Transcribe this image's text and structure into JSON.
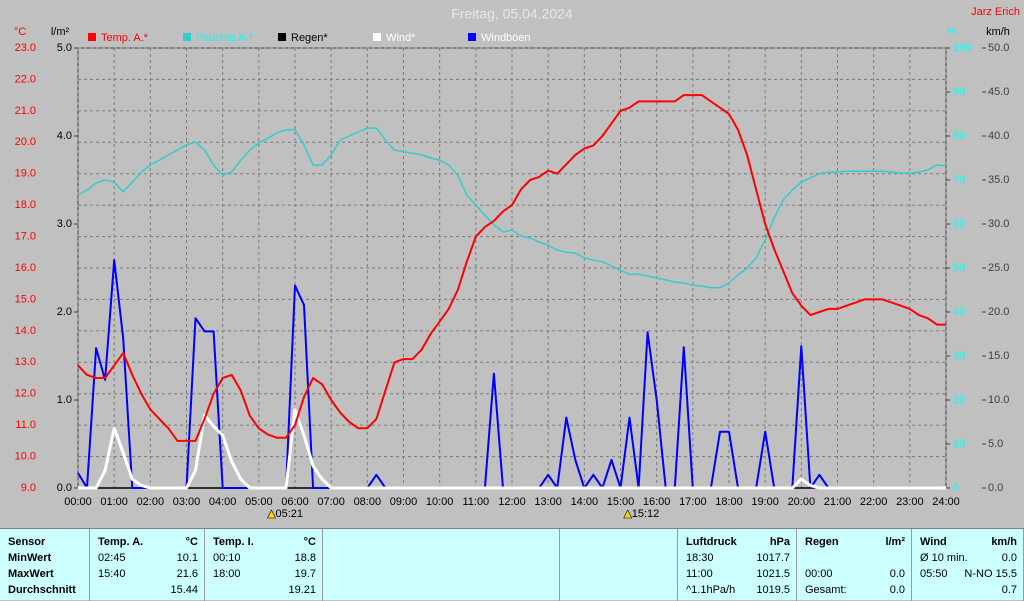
{
  "chart_data": {
    "type": "line",
    "title": "Freitag, 05.04.2024",
    "author": "Jarz Erich",
    "xlim": [
      0,
      24
    ],
    "xticks": [
      {
        "value": 0,
        "label": "00:00"
      },
      {
        "value": 1,
        "label": "01:00"
      },
      {
        "value": 2,
        "label": "02:00"
      },
      {
        "value": 3,
        "label": "03:00"
      },
      {
        "value": 4,
        "label": "04:00"
      },
      {
        "value": 5,
        "label": "05:00"
      },
      {
        "value": 6,
        "label": "06:00"
      },
      {
        "value": 7,
        "label": "07:00"
      },
      {
        "value": 8,
        "label": "08:00"
      },
      {
        "value": 9,
        "label": "09:00"
      },
      {
        "value": 10,
        "label": "10:00"
      },
      {
        "value": 11,
        "label": "11:00"
      },
      {
        "value": 12,
        "label": "12:00"
      },
      {
        "value": 13,
        "label": "13:00"
      },
      {
        "value": 14,
        "label": "14:00"
      },
      {
        "value": 15,
        "label": "15:00"
      },
      {
        "value": 16,
        "label": "16:00"
      },
      {
        "value": 17,
        "label": "17:00"
      },
      {
        "value": 18,
        "label": "18:00"
      },
      {
        "value": 19,
        "label": "19:00"
      },
      {
        "value": 20,
        "label": "20:00"
      },
      {
        "value": 21,
        "label": "21:00"
      },
      {
        "value": 22,
        "label": "22:00"
      },
      {
        "value": 23,
        "label": "23:00"
      },
      {
        "value": 24,
        "label": "24:00"
      }
    ],
    "y_label": "°C",
    "ylim": [
      9,
      23
    ],
    "yticks": [
      {
        "value": 9,
        "label": "9.0"
      },
      {
        "value": 10,
        "label": "10.0"
      },
      {
        "value": 11,
        "label": "11.0"
      },
      {
        "value": 12,
        "label": "12.0"
      },
      {
        "value": 13,
        "label": "13.0"
      },
      {
        "value": 14,
        "label": "14.0"
      },
      {
        "value": 15,
        "label": "15.0"
      },
      {
        "value": 16,
        "label": "16.0"
      },
      {
        "value": 17,
        "label": "17.0"
      },
      {
        "value": 18,
        "label": "18.0"
      },
      {
        "value": 19,
        "label": "19.0"
      },
      {
        "value": 20,
        "label": "20.0"
      },
      {
        "value": 21,
        "label": "21.0"
      },
      {
        "value": 22,
        "label": "22.0"
      },
      {
        "value": 23,
        "label": "23.0"
      }
    ],
    "rain_label": "l/m²",
    "rain_lim": [
      0,
      5
    ],
    "rain_ticks": [
      {
        "value": 0,
        "label": "0.0"
      },
      {
        "value": 1,
        "label": "1.0"
      },
      {
        "value": 2,
        "label": "2.0"
      },
      {
        "value": 3,
        "label": "3.0"
      },
      {
        "value": 4,
        "label": "4.0"
      },
      {
        "value": 5,
        "label": "5.0"
      }
    ],
    "y2_label": "%",
    "y2lim": [
      0,
      100
    ],
    "y2ticks": [
      0,
      10,
      20,
      30,
      40,
      50,
      60,
      70,
      80,
      90,
      100
    ],
    "wind_label": "km/h",
    "wind_lim": [
      0,
      50
    ],
    "wind_ticks": [
      {
        "value": 0,
        "label": "0.0"
      },
      {
        "value": 5,
        "label": "5.0"
      },
      {
        "value": 10,
        "label": "10.0"
      },
      {
        "value": 15,
        "label": "15.0"
      },
      {
        "value": 20,
        "label": "20.0"
      },
      {
        "value": 25,
        "label": "25.0"
      },
      {
        "value": 30,
        "label": "30.0"
      },
      {
        "value": 35,
        "label": "35.0"
      },
      {
        "value": 40,
        "label": "40.0"
      },
      {
        "value": 45,
        "label": "45.0"
      },
      {
        "value": 50,
        "label": "50.0"
      }
    ],
    "grid": true,
    "annotations": [
      {
        "x": 5.35,
        "label": "05:21"
      },
      {
        "x": 15.2,
        "label": "15:12"
      }
    ],
    "x": [
      0,
      0.25,
      0.5,
      0.75,
      1,
      1.25,
      1.5,
      1.75,
      2,
      2.25,
      2.5,
      2.75,
      3,
      3.25,
      3.5,
      3.75,
      4,
      4.25,
      4.5,
      4.75,
      5,
      5.25,
      5.5,
      5.75,
      6,
      6.25,
      6.5,
      6.75,
      7,
      7.25,
      7.5,
      7.75,
      8,
      8.25,
      8.5,
      8.75,
      9,
      9.25,
      9.5,
      9.75,
      10,
      10.25,
      10.5,
      10.75,
      11,
      11.25,
      11.5,
      11.75,
      12,
      12.25,
      12.5,
      12.75,
      13,
      13.25,
      13.5,
      13.75,
      14,
      14.25,
      14.5,
      14.75,
      15,
      15.25,
      15.5,
      15.75,
      16,
      16.25,
      16.5,
      16.75,
      17,
      17.25,
      17.5,
      17.75,
      18,
      18.25,
      18.5,
      18.75,
      19,
      19.25,
      19.5,
      19.75,
      20,
      20.25,
      20.5,
      20.75,
      21,
      21.25,
      21.5,
      21.75,
      22,
      22.25,
      22.5,
      22.75,
      23,
      23.25,
      23.5,
      23.75,
      24
    ],
    "series": [
      {
        "name": "Regen*",
        "color": "#000000",
        "label_color": "#000000",
        "width": 1.5,
        "axis": "rain",
        "values": [
          0,
          0,
          0,
          0,
          0,
          0,
          0,
          0,
          0,
          0,
          0,
          0,
          0,
          0,
          0,
          0,
          0,
          0,
          0,
          0,
          0,
          0,
          0,
          0,
          0,
          0,
          0,
          0,
          0,
          0,
          0,
          0,
          0,
          0,
          0,
          0,
          0,
          0,
          0,
          0,
          0,
          0,
          0,
          0,
          0,
          0,
          0,
          0,
          0,
          0,
          0,
          0,
          0,
          0,
          0,
          0,
          0,
          0,
          0,
          0,
          0,
          0,
          0,
          0,
          0,
          0,
          0,
          0,
          0,
          0,
          0,
          0,
          0,
          0,
          0,
          0,
          0,
          0,
          0,
          0,
          0,
          0,
          0,
          0,
          0,
          0,
          0,
          0,
          0,
          0,
          0,
          0,
          0,
          0,
          0,
          0,
          0
        ]
      },
      {
        "name": "Windböen",
        "color": "#0000ff",
        "label_color": "#ffffff",
        "width": 2,
        "axis": "wind",
        "values": [
          1.7,
          0,
          15.9,
          12.3,
          25.9,
          17.0,
          0,
          0,
          0,
          0,
          0,
          0,
          0,
          19.3,
          17.8,
          17.8,
          0,
          0,
          0,
          0,
          0,
          0,
          0,
          0,
          23.0,
          20.8,
          0,
          0,
          0,
          0,
          0,
          0,
          0,
          1.5,
          0,
          0,
          0,
          0,
          0,
          0,
          0,
          0,
          0,
          0,
          0,
          0,
          13.0,
          0,
          0,
          0,
          0,
          0,
          1.5,
          0,
          8.0,
          3.2,
          0,
          1.5,
          0,
          3.2,
          0,
          8.0,
          0,
          17.7,
          10.0,
          0,
          0,
          16.0,
          0,
          0,
          0,
          6.4,
          6.4,
          0,
          0,
          0,
          6.4,
          0,
          0,
          0,
          16.1,
          0,
          1.5,
          0,
          0,
          0,
          0,
          0,
          0,
          0,
          0,
          0,
          0,
          0,
          0,
          0,
          0
        ]
      },
      {
        "name": "Wind*",
        "color": "#ffffff",
        "label_color": "#ffffff",
        "width": 3,
        "axis": "wind",
        "values": [
          0,
          0,
          0,
          2.0,
          6.8,
          4.0,
          1.0,
          0.3,
          0,
          0,
          0,
          0,
          0,
          2.0,
          8.3,
          7.0,
          6.0,
          3.0,
          1.0,
          0,
          0,
          0,
          0,
          0,
          8.9,
          6.0,
          2.5,
          1.0,
          0,
          0,
          0,
          0,
          0,
          0,
          0,
          0,
          0,
          0,
          0,
          0,
          0,
          0,
          0,
          0,
          0,
          0,
          0,
          0,
          0,
          0,
          0,
          0,
          0,
          0,
          0,
          0,
          0,
          0,
          0,
          0,
          0,
          0,
          0,
          0,
          0,
          0,
          0,
          0,
          0,
          0,
          0,
          0,
          0,
          0,
          0,
          0,
          0,
          0,
          0,
          0,
          1.0,
          0.3,
          0,
          0,
          0,
          0,
          0,
          0,
          0,
          0,
          0,
          0,
          0,
          0,
          0,
          0,
          0
        ]
      },
      {
        "name": "Feuchte A.*",
        "color": "#33cccc",
        "label_color": "#00ffff",
        "width": 1.5,
        "axis": "y2",
        "values": [
          66.6,
          67.7,
          69.3,
          70.0,
          69.5,
          67.3,
          69.5,
          71.8,
          73.4,
          74.5,
          75.7,
          76.8,
          78.0,
          78.6,
          76.8,
          73.4,
          71.1,
          71.8,
          74.5,
          76.8,
          78.4,
          79.5,
          80.7,
          81.4,
          81.4,
          78.0,
          73.4,
          73.4,
          75.7,
          79.1,
          80.0,
          80.9,
          81.8,
          81.8,
          79.1,
          76.8,
          76.4,
          76.1,
          75.7,
          75.0,
          74.5,
          73.4,
          71.1,
          66.6,
          64.3,
          62.0,
          59.8,
          58.2,
          58.6,
          57.3,
          56.8,
          55.9,
          55.2,
          54.1,
          53.6,
          53.4,
          52.3,
          51.8,
          51.4,
          50.5,
          49.5,
          48.6,
          48.6,
          48.2,
          47.7,
          47.3,
          46.8,
          46.6,
          46.1,
          45.9,
          45.5,
          45.5,
          46.6,
          48.4,
          50.0,
          52.3,
          56.4,
          61.4,
          65.5,
          67.7,
          69.5,
          70.5,
          71.4,
          71.8,
          71.8,
          72.0,
          72.0,
          72.0,
          72.0,
          72.0,
          71.8,
          71.6,
          71.6,
          71.8,
          72.3,
          73.4,
          73.2
        ]
      },
      {
        "name": "Temp. A.*",
        "color": "#ff0000",
        "label_color": "#ff0000",
        "width": 2,
        "axis": "y",
        "values": [
          12.9,
          12.6,
          12.5,
          12.5,
          12.9,
          13.3,
          12.6,
          12.0,
          11.5,
          11.2,
          10.9,
          10.5,
          10.5,
          10.5,
          11.2,
          12.0,
          12.5,
          12.6,
          12.1,
          11.3,
          10.9,
          10.7,
          10.6,
          10.6,
          11.0,
          11.9,
          12.5,
          12.3,
          11.8,
          11.4,
          11.1,
          10.9,
          10.9,
          11.2,
          12.1,
          13.0,
          13.1,
          13.1,
          13.4,
          13.9,
          14.3,
          14.7,
          15.3,
          16.2,
          17.0,
          17.3,
          17.5,
          17.8,
          18.0,
          18.5,
          18.8,
          18.9,
          19.1,
          19.0,
          19.3,
          19.6,
          19.8,
          19.9,
          20.2,
          20.6,
          21.0,
          21.1,
          21.3,
          21.3,
          21.3,
          21.3,
          21.3,
          21.5,
          21.5,
          21.5,
          21.3,
          21.1,
          20.9,
          20.4,
          19.6,
          18.5,
          17.4,
          16.6,
          15.9,
          15.2,
          14.8,
          14.5,
          14.6,
          14.7,
          14.7,
          14.8,
          14.9,
          15.0,
          15.0,
          15.0,
          14.9,
          14.8,
          14.7,
          14.5,
          14.4,
          14.2,
          14.2
        ]
      }
    ],
    "legend_order": [
      4,
      3,
      0,
      2,
      1
    ]
  },
  "table": {
    "columns": [
      {
        "header": "Sensor",
        "cells": [
          "MinWert",
          "MaxWert",
          "Durchschnitt"
        ]
      },
      {
        "header": "Temp. A.",
        "unit": "°C",
        "rows": [
          {
            "time": "02:45",
            "value": "10.1"
          },
          {
            "time": "15:40",
            "value": "21.6"
          },
          {
            "value": "15.44"
          }
        ]
      },
      {
        "header": "Temp. I.",
        "unit": "°C",
        "rows": [
          {
            "time": "00:10",
            "value": "18.8"
          },
          {
            "time": "18:00",
            "value": "19.7"
          },
          {
            "value": "19.21"
          }
        ]
      },
      {
        "header": "Luftdruck",
        "unit": "hPa",
        "rows": [
          {
            "time": "18:30",
            "value": "1017.7"
          },
          {
            "time": "11:00",
            "value": "1021.5"
          },
          {
            "time": "^1.1hPa/h",
            "value": "1019.5"
          }
        ]
      },
      {
        "header": "Regen",
        "unit": "l/m²",
        "rows": [
          null,
          {
            "time": "00:00",
            "value": "0.0"
          },
          {
            "time": "Gesamt:",
            "value": "0.0"
          }
        ]
      },
      {
        "header": "Wind",
        "unit": "km/h",
        "rows": [
          {
            "time": "Ø 10 min.",
            "value": "0.0"
          },
          {
            "time": "05:50",
            "value": "N-NO 15.5"
          },
          {
            "value": "0.7"
          }
        ]
      }
    ]
  }
}
